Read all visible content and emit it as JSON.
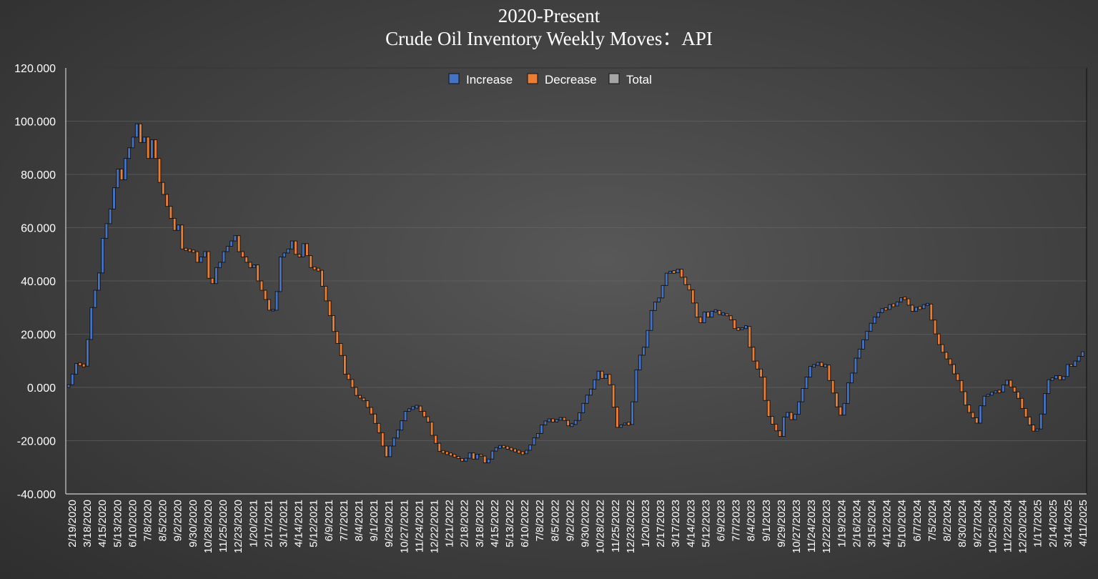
{
  "chart_data": {
    "type": "waterfall",
    "title": "2020-Present",
    "subtitle": "Crude Oil Inventory Weekly Moves：API",
    "xlabel": "",
    "ylabel": "",
    "ylim": [
      -40,
      120
    ],
    "yticks": [
      -40,
      -20,
      0,
      20,
      40,
      60,
      80,
      100,
      120
    ],
    "ytick_labels": [
      "-40.000",
      "-20.000",
      "0.000",
      "20.000",
      "40.000",
      "60.000",
      "80.000",
      "100.000",
      "120.000"
    ],
    "grid": true,
    "legend": {
      "position": "top-center",
      "entries": [
        {
          "name": "Increase",
          "color": "#4472c4"
        },
        {
          "name": "Decrease",
          "color": "#ed7d31"
        },
        {
          "name": "Total",
          "color": "#a5a5a5"
        }
      ]
    },
    "x_start": "2020-02-19",
    "x_end": "2025-04-11",
    "tick_labels": [
      "2/19/2020",
      "3/18/2020",
      "4/15/2020",
      "5/13/2020",
      "6/10/2020",
      "7/8/2020",
      "8/5/2020",
      "9/2/2020",
      "9/30/2020",
      "10/28/2020",
      "11/25/2020",
      "12/23/2020",
      "1/20/2021",
      "2/17/2021",
      "3/17/2021",
      "4/14/2021",
      "5/12/2021",
      "6/9/2021",
      "7/7/2021",
      "8/4/2021",
      "9/1/2021",
      "9/29/2021",
      "10/27/2021",
      "11/24/2021",
      "12/22/2021",
      "1/21/2022",
      "2/18/2022",
      "3/18/2022",
      "4/15/2022",
      "5/13/2022",
      "6/10/2022",
      "7/8/2022",
      "8/5/2022",
      "9/2/2022",
      "9/30/2022",
      "10/28/2022",
      "11/25/2022",
      "12/23/2022",
      "1/20/2023",
      "2/17/2023",
      "3/17/2023",
      "4/14/2023",
      "5/12/2023",
      "6/9/2023",
      "7/7/2023",
      "8/4/2023",
      "9/1/2023",
      "9/29/2023",
      "10/27/2023",
      "11/24/2023",
      "12/22/2023",
      "1/19/2024",
      "2/16/2024",
      "3/15/2024",
      "4/12/2024",
      "5/10/2024",
      "6/7/2024",
      "7/5/2024",
      "8/2/2024",
      "8/30/2024",
      "9/27/2024",
      "10/25/2024",
      "11/22/2024",
      "12/20/2024",
      "1/17/2025",
      "2/14/2025",
      "3/14/2025",
      "4/11/2025"
    ],
    "cumulative_anchors": [
      [
        "2020-02-19",
        1
      ],
      [
        "2020-03-04",
        9
      ],
      [
        "2020-03-18",
        8
      ],
      [
        "2020-03-25",
        18
      ],
      [
        "2020-04-01",
        30
      ],
      [
        "2020-04-15",
        43
      ],
      [
        "2020-04-22",
        56
      ],
      [
        "2020-05-06",
        67
      ],
      [
        "2020-05-13",
        75
      ],
      [
        "2020-05-20",
        82
      ],
      [
        "2020-05-27",
        78
      ],
      [
        "2020-06-03",
        86
      ],
      [
        "2020-06-17",
        94
      ],
      [
        "2020-06-24",
        99
      ],
      [
        "2020-07-01",
        92
      ],
      [
        "2020-07-08",
        94
      ],
      [
        "2020-07-15",
        86
      ],
      [
        "2020-07-22",
        93
      ],
      [
        "2020-07-29",
        86
      ],
      [
        "2020-08-05",
        77
      ],
      [
        "2020-08-19",
        68
      ],
      [
        "2020-09-02",
        59
      ],
      [
        "2020-09-09",
        61
      ],
      [
        "2020-09-16",
        52
      ],
      [
        "2020-10-07",
        51
      ],
      [
        "2020-10-14",
        47
      ],
      [
        "2020-10-28",
        51
      ],
      [
        "2020-11-04",
        41
      ],
      [
        "2020-11-11",
        39
      ],
      [
        "2020-11-18",
        45
      ],
      [
        "2020-11-25",
        47
      ],
      [
        "2020-12-02",
        51
      ],
      [
        "2020-12-16",
        55
      ],
      [
        "2020-12-23",
        57
      ],
      [
        "2020-12-30",
        51
      ],
      [
        "2021-01-13",
        47
      ],
      [
        "2021-01-20",
        45
      ],
      [
        "2021-01-27",
        46
      ],
      [
        "2021-02-03",
        40
      ],
      [
        "2021-02-17",
        33
      ],
      [
        "2021-02-24",
        29
      ],
      [
        "2021-03-03",
        29
      ],
      [
        "2021-03-10",
        36
      ],
      [
        "2021-03-17",
        49
      ],
      [
        "2021-03-31",
        52
      ],
      [
        "2021-04-07",
        55
      ],
      [
        "2021-04-14",
        50
      ],
      [
        "2021-04-21",
        49
      ],
      [
        "2021-04-28",
        54
      ],
      [
        "2021-05-12",
        45
      ],
      [
        "2021-05-26",
        44
      ],
      [
        "2021-06-02",
        38
      ],
      [
        "2021-06-16",
        27
      ],
      [
        "2021-06-23",
        21
      ],
      [
        "2021-07-07",
        12
      ],
      [
        "2021-07-14",
        5
      ],
      [
        "2021-07-21",
        3
      ],
      [
        "2021-08-04",
        -3
      ],
      [
        "2021-08-18",
        -5
      ],
      [
        "2021-09-01",
        -10
      ],
      [
        "2021-09-15",
        -17
      ],
      [
        "2021-09-22",
        -22
      ],
      [
        "2021-09-29",
        -26
      ],
      [
        "2021-10-06",
        -22
      ],
      [
        "2021-10-20",
        -16
      ],
      [
        "2021-11-03",
        -9
      ],
      [
        "2021-11-10",
        -8
      ],
      [
        "2021-11-24",
        -7
      ],
      [
        "2021-12-01",
        -9
      ],
      [
        "2021-12-15",
        -13
      ],
      [
        "2021-12-22",
        -18
      ],
      [
        "2022-01-05",
        -24
      ],
      [
        "2022-01-21",
        -25
      ],
      [
        "2022-02-04",
        -26
      ],
      [
        "2022-02-18",
        -28
      ],
      [
        "2022-03-04",
        -24
      ],
      [
        "2022-03-11",
        -28
      ],
      [
        "2022-03-18",
        -24
      ],
      [
        "2022-04-01",
        -29
      ],
      [
        "2022-04-15",
        -23
      ],
      [
        "2022-04-29",
        -22
      ],
      [
        "2022-05-13",
        -23
      ],
      [
        "2022-05-27",
        -24
      ],
      [
        "2022-06-10",
        -25
      ],
      [
        "2022-06-24",
        -21
      ],
      [
        "2022-07-01",
        -18
      ],
      [
        "2022-07-08",
        -17
      ],
      [
        "2022-07-15",
        -13
      ],
      [
        "2022-07-29",
        -12
      ],
      [
        "2022-08-05",
        -13
      ],
      [
        "2022-08-19",
        -11
      ],
      [
        "2022-09-02",
        -15
      ],
      [
        "2022-09-16",
        -12
      ],
      [
        "2022-09-30",
        -5
      ],
      [
        "2022-10-07",
        -2
      ],
      [
        "2022-10-14",
        0
      ],
      [
        "2022-10-21",
        4
      ],
      [
        "2022-10-28",
        7
      ],
      [
        "2022-11-04",
        2
      ],
      [
        "2022-11-11",
        6
      ],
      [
        "2022-11-18",
        -1
      ],
      [
        "2022-11-25",
        -10
      ],
      [
        "2022-12-02",
        -17
      ],
      [
        "2022-12-09",
        -13
      ],
      [
        "2022-12-23",
        -14
      ],
      [
        "2022-12-30",
        -2
      ],
      [
        "2023-01-06",
        10
      ],
      [
        "2023-01-20",
        16
      ],
      [
        "2023-02-03",
        31
      ],
      [
        "2023-02-17",
        34
      ],
      [
        "2023-02-24",
        40
      ],
      [
        "2023-03-03",
        44
      ],
      [
        "2023-03-17",
        43
      ],
      [
        "2023-03-24",
        45
      ],
      [
        "2023-03-31",
        40
      ],
      [
        "2023-04-14",
        36
      ],
      [
        "2023-04-21",
        30
      ],
      [
        "2023-04-28",
        25
      ],
      [
        "2023-05-05",
        24
      ],
      [
        "2023-05-12",
        30
      ],
      [
        "2023-05-19",
        25
      ],
      [
        "2023-05-26",
        30
      ],
      [
        "2023-06-09",
        27
      ],
      [
        "2023-06-16",
        28
      ],
      [
        "2023-06-30",
        25
      ],
      [
        "2023-07-07",
        21
      ],
      [
        "2023-07-14",
        22
      ],
      [
        "2023-07-28",
        23
      ],
      [
        "2023-08-04",
        12
      ],
      [
        "2023-08-11",
        9
      ],
      [
        "2023-08-25",
        3
      ],
      [
        "2023-09-01",
        -8
      ],
      [
        "2023-09-08",
        -12
      ],
      [
        "2023-09-22",
        -17
      ],
      [
        "2023-09-29",
        -19
      ],
      [
        "2023-10-06",
        -8
      ],
      [
        "2023-10-13",
        -10
      ],
      [
        "2023-10-20",
        -13
      ],
      [
        "2023-10-27",
        -9
      ],
      [
        "2023-11-03",
        -4
      ],
      [
        "2023-11-10",
        1
      ],
      [
        "2023-11-24",
        9
      ],
      [
        "2023-12-01",
        8
      ],
      [
        "2023-12-08",
        10
      ],
      [
        "2023-12-15",
        7
      ],
      [
        "2023-12-22",
        9
      ],
      [
        "2023-12-29",
        0
      ],
      [
        "2024-01-05",
        -3
      ],
      [
        "2024-01-12",
        -9
      ],
      [
        "2024-01-19",
        -11
      ],
      [
        "2024-01-26",
        -4
      ],
      [
        "2024-02-02",
        4
      ],
      [
        "2024-02-09",
        6
      ],
      [
        "2024-02-16",
        13
      ],
      [
        "2024-02-23",
        15
      ],
      [
        "2024-03-01",
        19
      ],
      [
        "2024-03-15",
        25
      ],
      [
        "2024-03-22",
        27
      ],
      [
        "2024-04-05",
        30
      ],
      [
        "2024-04-12",
        29
      ],
      [
        "2024-04-19",
        32
      ],
      [
        "2024-04-26",
        30
      ],
      [
        "2024-05-03",
        33
      ],
      [
        "2024-05-10",
        34
      ],
      [
        "2024-05-17",
        33
      ],
      [
        "2024-05-24",
        30
      ],
      [
        "2024-05-31",
        28
      ],
      [
        "2024-06-07",
        31
      ],
      [
        "2024-06-14",
        29
      ],
      [
        "2024-06-21",
        32
      ],
      [
        "2024-06-28",
        31
      ],
      [
        "2024-07-05",
        23
      ],
      [
        "2024-07-12",
        19
      ],
      [
        "2024-07-19",
        15
      ],
      [
        "2024-08-02",
        10
      ],
      [
        "2024-08-09",
        8
      ],
      [
        "2024-08-16",
        4
      ],
      [
        "2024-08-23",
        2
      ],
      [
        "2024-08-30",
        -3
      ],
      [
        "2024-09-06",
        -8
      ],
      [
        "2024-09-13",
        -10
      ],
      [
        "2024-09-20",
        -12
      ],
      [
        "2024-09-27",
        -14
      ],
      [
        "2024-10-04",
        -4
      ],
      [
        "2024-10-11",
        -3
      ],
      [
        "2024-10-25",
        -2
      ],
      [
        "2024-11-01",
        -1
      ],
      [
        "2024-11-08",
        -2
      ],
      [
        "2024-11-15",
        2
      ],
      [
        "2024-11-22",
        3
      ],
      [
        "2024-11-29",
        -1
      ],
      [
        "2024-12-06",
        -2
      ],
      [
        "2024-12-13",
        -5
      ],
      [
        "2024-12-20",
        -9
      ],
      [
        "2024-12-27",
        -12
      ],
      [
        "2025-01-03",
        -15
      ],
      [
        "2025-01-10",
        -17
      ],
      [
        "2025-01-17",
        -15
      ],
      [
        "2025-01-24",
        -8
      ],
      [
        "2025-01-31",
        0
      ],
      [
        "2025-02-07",
        4
      ],
      [
        "2025-02-14",
        3
      ],
      [
        "2025-02-21",
        5
      ],
      [
        "2025-02-28",
        2
      ],
      [
        "2025-03-07",
        5
      ],
      [
        "2025-03-14",
        10
      ],
      [
        "2025-03-21",
        7
      ],
      [
        "2025-03-28",
        11
      ],
      [
        "2025-04-04",
        12
      ],
      [
        "2025-04-11",
        14
      ]
    ]
  }
}
